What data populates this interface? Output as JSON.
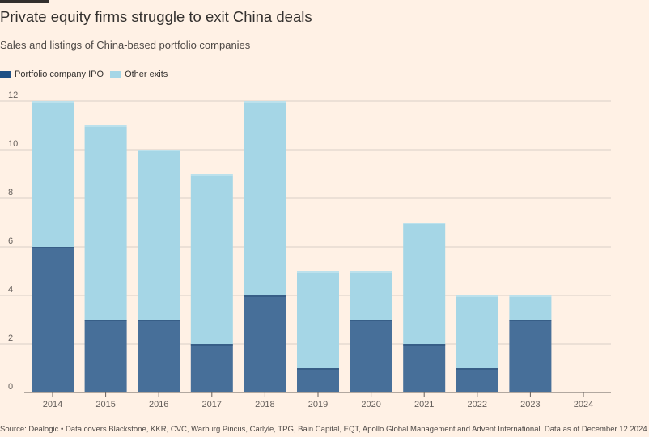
{
  "title": "Private equity firms struggle to exit China deals",
  "subtitle": "Sales and listings of China-based portfolio companies",
  "source": "Source: Dealogic • Data covers Blackstone, KKR, CVC, Warburg Pincus, Carlyle, TPG, Bain Capital, EQT, Apollo Global Management and Advent International. Data as of December 12 2024.",
  "colors": {
    "ipo": "#476f99",
    "other": "#a5d6e6",
    "ipo_legend": "#1e4f84",
    "grid": "#d9cfc6",
    "axis": "#66605c"
  },
  "chart_data": {
    "type": "bar",
    "stacked": true,
    "categories": [
      "2014",
      "2015",
      "2016",
      "2017",
      "2018",
      "2019",
      "2020",
      "2021",
      "2022",
      "2023",
      "2024"
    ],
    "series": [
      {
        "name": "Portfolio company IPO",
        "values": [
          6,
          3,
          3,
          2,
          4,
          1,
          3,
          2,
          1,
          3,
          0
        ]
      },
      {
        "name": "Other exits",
        "values": [
          6,
          8,
          7,
          7,
          8,
          4,
          2,
          5,
          3,
          1,
          0
        ]
      }
    ],
    "ylim": [
      0,
      12
    ],
    "yticks": [
      "0",
      "2",
      "4",
      "6",
      "8",
      "10",
      "12"
    ],
    "legend": "top-left"
  }
}
